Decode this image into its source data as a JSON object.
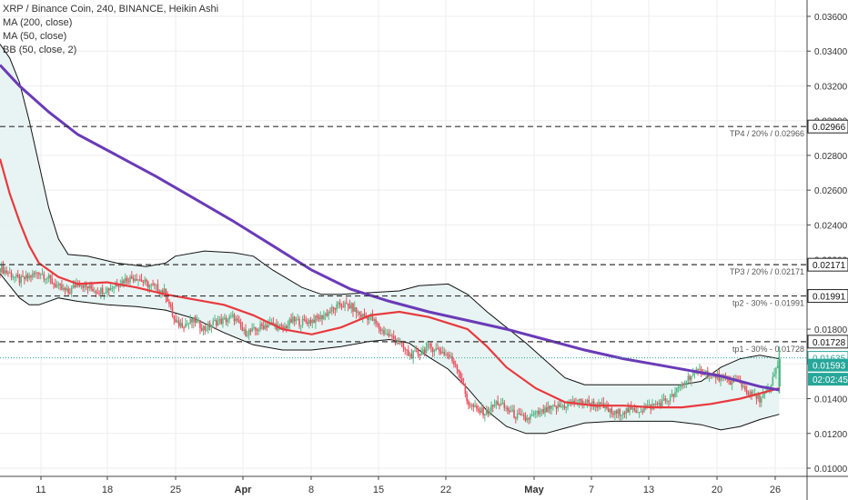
{
  "header": {
    "title": "XRP / Binance Coin, 240, BINANCE, Heikin Ashi",
    "indicators": [
      "MA (200, close)",
      "MA (50, close)",
      "BB (50, close, 2)"
    ]
  },
  "colors": {
    "up": "#53b987",
    "down": "#eb4d5c",
    "ma200": "#6a3bb7",
    "ma50": "#e8393e",
    "bb": "#111111",
    "bb_fill": "#e6f3f2",
    "level_line": "#333333",
    "current_line": "#27a69a",
    "label_fill": "#27a69a",
    "grid": "#eeeeee"
  },
  "chart_data": {
    "type": "line",
    "yaxis": {
      "ticks": [
        "0.03600",
        "0.03400",
        "0.03200",
        "0.03000",
        "0.02800",
        "0.02600",
        "0.02400",
        "0.02200",
        "0.02000",
        "0.01800",
        "0.01600",
        "0.01400",
        "0.01200",
        "0.01000"
      ],
      "range": [
        0.0093,
        0.0375
      ]
    },
    "xaxis": {
      "ticks": [
        "11",
        "18",
        "25",
        "Apr",
        "8",
        "15",
        "22",
        "May",
        "7",
        "13",
        "20",
        "26"
      ],
      "bold": [
        "Apr",
        "May"
      ],
      "x_range": [
        0,
        85
      ]
    },
    "levels": [
      {
        "price": 0.02966,
        "label": "TP4 / 20% / 0.02966",
        "value": "0.02966"
      },
      {
        "price": 0.02171,
        "label": "TP3 / 20% / 0.02171",
        "value": "0.02171"
      },
      {
        "price": 0.01991,
        "label": "tp2 - 30% -  0.01991",
        "value": "0.01991"
      },
      {
        "price": 0.01728,
        "label": "tp1 - 30% - 0.01728",
        "value": "0.01728"
      }
    ],
    "price_labels": [
      {
        "price": 0.01635,
        "value": "0.01635",
        "style": "outline"
      },
      {
        "price": 0.01593,
        "value": "0.01593",
        "style": "filled"
      },
      {
        "price": 0.01512,
        "value": "02:02:45",
        "style": "filled"
      }
    ],
    "current_price": 0.01635,
    "ma200": [
      [
        0,
        0.0332
      ],
      [
        2,
        0.032
      ],
      [
        5,
        0.0305
      ],
      [
        8,
        0.0292
      ],
      [
        12,
        0.028
      ],
      [
        16,
        0.0268
      ],
      [
        20,
        0.0255
      ],
      [
        24,
        0.0242
      ],
      [
        28,
        0.0228
      ],
      [
        32,
        0.0214
      ],
      [
        36,
        0.0203
      ],
      [
        40,
        0.0196
      ],
      [
        44,
        0.019
      ],
      [
        48,
        0.0185
      ],
      [
        52,
        0.018
      ],
      [
        56,
        0.0174
      ],
      [
        60,
        0.0168
      ],
      [
        64,
        0.0163
      ],
      [
        68,
        0.0159
      ],
      [
        72,
        0.0155
      ],
      [
        74,
        0.0153
      ],
      [
        76,
        0.015
      ],
      [
        78,
        0.0147
      ],
      [
        80,
        0.0145
      ]
    ],
    "ma50": [
      [
        0,
        0.0278
      ],
      [
        1,
        0.0258
      ],
      [
        2,
        0.0242
      ],
      [
        3,
        0.0228
      ],
      [
        4,
        0.0218
      ],
      [
        6,
        0.021
      ],
      [
        8,
        0.0206
      ],
      [
        11,
        0.0207
      ],
      [
        14,
        0.0204
      ],
      [
        17,
        0.02
      ],
      [
        20,
        0.0197
      ],
      [
        23,
        0.0194
      ],
      [
        26,
        0.0188
      ],
      [
        29,
        0.018
      ],
      [
        32,
        0.0177
      ],
      [
        35,
        0.0181
      ],
      [
        38,
        0.0188
      ],
      [
        41,
        0.019
      ],
      [
        44,
        0.0187
      ],
      [
        48,
        0.018
      ],
      [
        50,
        0.017
      ],
      [
        52,
        0.0158
      ],
      [
        55,
        0.0146
      ],
      [
        58,
        0.0138
      ],
      [
        61,
        0.0136
      ],
      [
        64,
        0.0136
      ],
      [
        67,
        0.0135
      ],
      [
        70,
        0.0135
      ],
      [
        73,
        0.0137
      ],
      [
        76,
        0.014
      ],
      [
        78,
        0.0143
      ],
      [
        80,
        0.0146
      ]
    ],
    "bb_upper": [
      [
        0,
        0.0344
      ],
      [
        1,
        0.0336
      ],
      [
        2,
        0.0322
      ],
      [
        3,
        0.03
      ],
      [
        4,
        0.0275
      ],
      [
        5,
        0.025
      ],
      [
        6,
        0.0232
      ],
      [
        7,
        0.0223
      ],
      [
        9,
        0.0222
      ],
      [
        12,
        0.0218
      ],
      [
        15,
        0.0216
      ],
      [
        17,
        0.0218
      ],
      [
        18,
        0.0222
      ],
      [
        21,
        0.0225
      ],
      [
        24,
        0.0224
      ],
      [
        26,
        0.0222
      ],
      [
        28,
        0.0214
      ],
      [
        31,
        0.0204
      ],
      [
        33,
        0.02
      ],
      [
        35,
        0.02
      ],
      [
        38,
        0.0201
      ],
      [
        41,
        0.0202
      ],
      [
        43,
        0.0205
      ],
      [
        46,
        0.0206
      ],
      [
        48,
        0.02
      ],
      [
        50,
        0.019
      ],
      [
        52,
        0.0181
      ],
      [
        54,
        0.0172
      ],
      [
        56,
        0.0162
      ],
      [
        58,
        0.0152
      ],
      [
        60,
        0.0148
      ],
      [
        62,
        0.0148
      ],
      [
        65,
        0.0148
      ],
      [
        68,
        0.0148
      ],
      [
        70,
        0.0148
      ],
      [
        72,
        0.015
      ],
      [
        74,
        0.0158
      ],
      [
        76,
        0.0163
      ],
      [
        78,
        0.0165
      ],
      [
        80,
        0.0163
      ]
    ],
    "bb_lower": [
      [
        0,
        0.0212
      ],
      [
        2,
        0.0198
      ],
      [
        3,
        0.0194
      ],
      [
        4,
        0.0194
      ],
      [
        6,
        0.0198
      ],
      [
        8,
        0.0196
      ],
      [
        11,
        0.0194
      ],
      [
        14,
        0.0193
      ],
      [
        17,
        0.0191
      ],
      [
        20,
        0.0186
      ],
      [
        23,
        0.0178
      ],
      [
        26,
        0.0171
      ],
      [
        29,
        0.0168
      ],
      [
        32,
        0.0168
      ],
      [
        35,
        0.017
      ],
      [
        38,
        0.0173
      ],
      [
        40,
        0.0174
      ],
      [
        42,
        0.0172
      ],
      [
        44,
        0.0164
      ],
      [
        46,
        0.0157
      ],
      [
        48,
        0.0146
      ],
      [
        50,
        0.0133
      ],
      [
        52,
        0.0124
      ],
      [
        54,
        0.012
      ],
      [
        56,
        0.012
      ],
      [
        58,
        0.0123
      ],
      [
        60,
        0.0126
      ],
      [
        63,
        0.0127
      ],
      [
        66,
        0.0127
      ],
      [
        69,
        0.0127
      ],
      [
        72,
        0.0125
      ],
      [
        74,
        0.0122
      ],
      [
        76,
        0.0124
      ],
      [
        78,
        0.0128
      ],
      [
        80,
        0.0131
      ]
    ],
    "price": [
      [
        0,
        0.0215
      ],
      [
        1,
        0.0212
      ],
      [
        2,
        0.0208
      ],
      [
        3,
        0.021
      ],
      [
        4,
        0.0213
      ],
      [
        5,
        0.0209
      ],
      [
        6,
        0.0204
      ],
      [
        7,
        0.0201
      ],
      [
        8,
        0.0207
      ],
      [
        9,
        0.0204
      ],
      [
        10,
        0.0202
      ],
      [
        11,
        0.0203
      ],
      [
        12,
        0.0206
      ],
      [
        13,
        0.0209
      ],
      [
        14,
        0.021
      ],
      [
        15,
        0.0206
      ],
      [
        16,
        0.0204
      ],
      [
        17,
        0.0201
      ],
      [
        18,
        0.0183
      ],
      [
        19,
        0.0183
      ],
      [
        20,
        0.0185
      ],
      [
        21,
        0.018
      ],
      [
        22,
        0.0184
      ],
      [
        23,
        0.0185
      ],
      [
        24,
        0.0187
      ],
      [
        25,
        0.0178
      ],
      [
        26,
        0.0179
      ],
      [
        27,
        0.0182
      ],
      [
        28,
        0.0183
      ],
      [
        29,
        0.018
      ],
      [
        30,
        0.0185
      ],
      [
        31,
        0.0184
      ],
      [
        32,
        0.0185
      ],
      [
        33,
        0.0187
      ],
      [
        34,
        0.0191
      ],
      [
        35,
        0.0194
      ],
      [
        36,
        0.0193
      ],
      [
        37,
        0.0188
      ],
      [
        38,
        0.0187
      ],
      [
        39,
        0.018
      ],
      [
        40,
        0.0176
      ],
      [
        41,
        0.0172
      ],
      [
        42,
        0.0165
      ],
      [
        43,
        0.0166
      ],
      [
        44,
        0.017
      ],
      [
        45,
        0.0168
      ],
      [
        46,
        0.0165
      ],
      [
        47,
        0.0158
      ],
      [
        48,
        0.0138
      ],
      [
        49,
        0.0133
      ],
      [
        50,
        0.0132
      ],
      [
        51,
        0.0138
      ],
      [
        52,
        0.0134
      ],
      [
        53,
        0.013
      ],
      [
        54,
        0.0128
      ],
      [
        55,
        0.0131
      ],
      [
        56,
        0.0133
      ],
      [
        57,
        0.0135
      ],
      [
        58,
        0.0136
      ],
      [
        59,
        0.0138
      ],
      [
        60,
        0.0138
      ],
      [
        61,
        0.0137
      ],
      [
        62,
        0.0135
      ],
      [
        63,
        0.0131
      ],
      [
        64,
        0.0133
      ],
      [
        65,
        0.0133
      ],
      [
        66,
        0.0134
      ],
      [
        67,
        0.0136
      ],
      [
        68,
        0.0138
      ],
      [
        69,
        0.0141
      ],
      [
        70,
        0.0148
      ],
      [
        71,
        0.0154
      ],
      [
        72,
        0.0156
      ],
      [
        73,
        0.0154
      ],
      [
        74,
        0.0152
      ],
      [
        75,
        0.015
      ],
      [
        76,
        0.0149
      ],
      [
        77,
        0.0142
      ],
      [
        78,
        0.014
      ],
      [
        79,
        0.0145
      ],
      [
        80,
        0.0163
      ]
    ]
  }
}
